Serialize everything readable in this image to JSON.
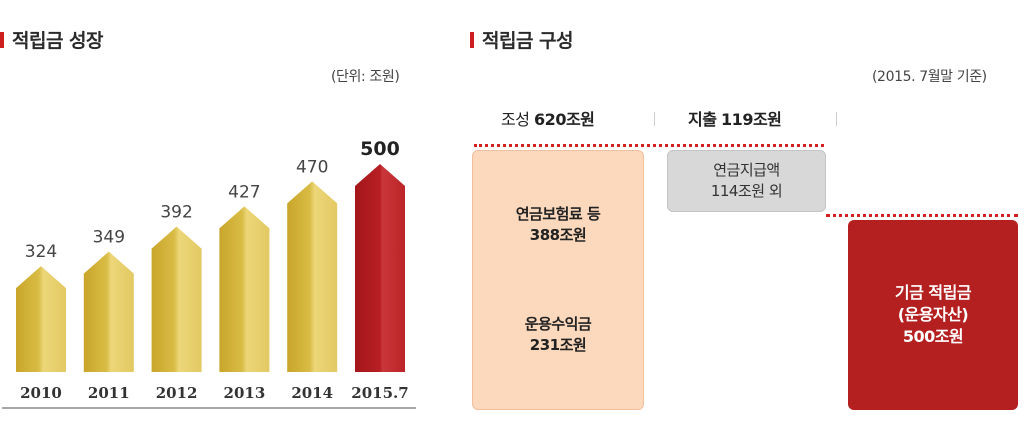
{
  "left": {
    "title": "적립금 성장",
    "unit": "(단위: 조원)"
  },
  "right": {
    "title": "적립금 구성",
    "date_note": "(2015. 7월말 기준)",
    "formation_label": "조성",
    "formation_value": "620조원",
    "expenditure_label": "지출",
    "expenditure_value": "119조원",
    "contributions_line1": "연금보험료 등",
    "contributions_line2": "388조원",
    "returns_line1": "운용수익금",
    "returns_line2": "231조원",
    "benefits_line1": "연금지급액",
    "benefits_line2": "114조원 외",
    "fund_line1": "기금 적립금",
    "fund_line2": "(운용자산)",
    "fund_line3": "500조원"
  },
  "colors": {
    "accent": "#cc1f1f",
    "gold": "#d4b435",
    "gold_light": "#ecd678",
    "red_bar": "#b41f1f",
    "peach": "#fcd8bd",
    "grey_box": "#d8d8d8"
  },
  "chart_data": {
    "type": "bar",
    "title": "적립금 성장",
    "unit": "(단위: 조원)",
    "categories": [
      "2010",
      "2011",
      "2012",
      "2013",
      "2014",
      "2015.7"
    ],
    "values": [
      324,
      349,
      392,
      427,
      470,
      500
    ],
    "highlight_index": 5
  }
}
